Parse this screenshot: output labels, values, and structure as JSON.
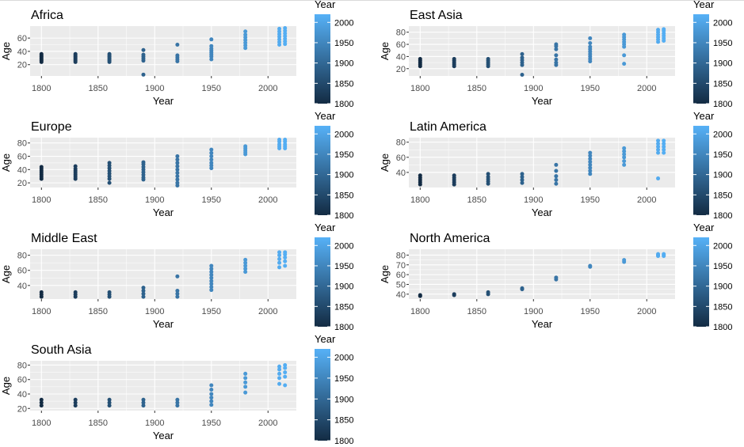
{
  "chart_data": [
    {
      "type": "scatter",
      "title": "Africa",
      "xlabel": "Year",
      "ylabel": "Age",
      "xlim": [
        1790,
        2025
      ],
      "ylim": [
        3,
        78
      ],
      "xticks": [
        1800,
        1850,
        1900,
        1950,
        2000
      ],
      "yticks": [
        20,
        40,
        60
      ],
      "legend": {
        "title": "Year",
        "ticks": [
          1800,
          1850,
          1900,
          1950,
          2000
        ],
        "range": [
          1800,
          2020
        ],
        "position": "right"
      },
      "points": [
        {
          "x": 1800,
          "y": [
            24,
            26,
            28,
            30,
            32,
            34,
            36
          ]
        },
        {
          "x": 1830,
          "y": [
            24,
            26,
            28,
            30,
            32,
            34,
            36
          ]
        },
        {
          "x": 1860,
          "y": [
            24,
            26,
            28,
            30,
            32,
            34,
            36
          ]
        },
        {
          "x": 1890,
          "y": [
            5,
            26,
            29,
            32,
            35,
            42
          ]
        },
        {
          "x": 1920,
          "y": [
            25,
            28,
            31,
            34,
            50
          ]
        },
        {
          "x": 1950,
          "y": [
            28,
            32,
            35,
            38,
            41,
            44,
            48,
            58
          ]
        },
        {
          "x": 1980,
          "y": [
            45,
            49,
            53,
            57,
            61,
            65,
            70
          ]
        },
        {
          "x": 2010,
          "y": [
            50,
            54,
            58,
            62,
            66,
            70,
            74
          ]
        },
        {
          "x": 2015,
          "y": [
            51,
            55,
            59,
            63,
            67,
            71,
            75
          ]
        }
      ]
    },
    {
      "type": "scatter",
      "title": "East Asia",
      "xlabel": "Year",
      "ylabel": "Age",
      "xlim": [
        1790,
        2025
      ],
      "ylim": [
        8,
        90
      ],
      "xticks": [
        1800,
        1850,
        1900,
        1950,
        2000
      ],
      "yticks": [
        20,
        40,
        60,
        80
      ],
      "legend": {
        "title": "Year",
        "ticks": [
          1800,
          1850,
          1900,
          1950,
          2000
        ],
        "range": [
          1800,
          2020
        ],
        "position": "right"
      },
      "points": [
        {
          "x": 1800,
          "y": [
            24,
            27,
            30,
            33,
            36
          ]
        },
        {
          "x": 1830,
          "y": [
            24,
            27,
            30,
            33,
            36
          ]
        },
        {
          "x": 1860,
          "y": [
            24,
            27,
            30,
            33,
            36
          ]
        },
        {
          "x": 1890,
          "y": [
            10,
            26,
            30,
            34,
            38,
            44
          ]
        },
        {
          "x": 1920,
          "y": [
            26,
            30,
            35,
            42,
            52,
            57,
            60
          ]
        },
        {
          "x": 1950,
          "y": [
            32,
            36,
            40,
            44,
            48,
            52,
            56,
            62,
            70
          ]
        },
        {
          "x": 1980,
          "y": [
            28,
            42,
            56,
            60,
            64,
            68,
            72,
            76
          ]
        },
        {
          "x": 2010,
          "y": [
            64,
            68,
            72,
            76,
            80,
            84
          ]
        },
        {
          "x": 2015,
          "y": [
            66,
            70,
            74,
            78,
            82,
            85
          ]
        }
      ]
    },
    {
      "type": "scatter",
      "title": "Europe",
      "xlabel": "Year",
      "ylabel": "Age",
      "xlim": [
        1790,
        2025
      ],
      "ylim": [
        13,
        88
      ],
      "xticks": [
        1800,
        1850,
        1900,
        1950,
        2000
      ],
      "yticks": [
        20,
        40,
        60,
        80
      ],
      "legend": {
        "title": "Year",
        "ticks": [
          1800,
          1850,
          1900,
          1950,
          2000
        ],
        "range": [
          1800,
          2020
        ],
        "position": "right"
      },
      "points": [
        {
          "x": 1800,
          "y": [
            26,
            29,
            32,
            35,
            38,
            41,
            44
          ]
        },
        {
          "x": 1830,
          "y": [
            26,
            29,
            32,
            35,
            38,
            41,
            45
          ]
        },
        {
          "x": 1860,
          "y": [
            20,
            26,
            30,
            34,
            38,
            42,
            46,
            50
          ]
        },
        {
          "x": 1890,
          "y": [
            25,
            28,
            32,
            36,
            40,
            44,
            48,
            51
          ]
        },
        {
          "x": 1920,
          "y": [
            16,
            20,
            25,
            30,
            35,
            40,
            45,
            50,
            55,
            60
          ]
        },
        {
          "x": 1950,
          "y": [
            42,
            46,
            50,
            55,
            60,
            65,
            70
          ]
        },
        {
          "x": 1980,
          "y": [
            63,
            66,
            69,
            72,
            75
          ]
        },
        {
          "x": 2010,
          "y": [
            72,
            75,
            78,
            82,
            85
          ]
        },
        {
          "x": 2015,
          "y": [
            72,
            75,
            78,
            82,
            85
          ]
        }
      ]
    },
    {
      "type": "scatter",
      "title": "Latin America",
      "xlabel": "Year",
      "ylabel": "Age",
      "xlim": [
        1790,
        2025
      ],
      "ylim": [
        20,
        86
      ],
      "xticks": [
        1800,
        1850,
        1900,
        1950,
        2000
      ],
      "yticks": [
        40,
        60,
        80
      ],
      "legend": {
        "title": "Year",
        "ticks": [
          1800,
          1850,
          1900,
          1950,
          2000
        ],
        "range": [
          1800,
          2020
        ],
        "position": "right"
      },
      "points": [
        {
          "x": 1800,
          "y": [
            24,
            27,
            30,
            33,
            36
          ]
        },
        {
          "x": 1830,
          "y": [
            24,
            27,
            30,
            33,
            36
          ]
        },
        {
          "x": 1860,
          "y": [
            25,
            28,
            31,
            34,
            38
          ]
        },
        {
          "x": 1890,
          "y": [
            26,
            30,
            34,
            38
          ]
        },
        {
          "x": 1920,
          "y": [
            25,
            30,
            35,
            42,
            50
          ]
        },
        {
          "x": 1950,
          "y": [
            38,
            42,
            46,
            50,
            54,
            58,
            62,
            66
          ]
        },
        {
          "x": 1980,
          "y": [
            50,
            55,
            60,
            64,
            68,
            72
          ]
        },
        {
          "x": 2010,
          "y": [
            32,
            66,
            70,
            74,
            78,
            82
          ]
        },
        {
          "x": 2015,
          "y": [
            66,
            70,
            74,
            78,
            82
          ]
        }
      ]
    },
    {
      "type": "scatter",
      "title": "Middle East",
      "xlabel": "Year",
      "ylabel": "Age",
      "xlim": [
        1790,
        2025
      ],
      "ylim": [
        22,
        88
      ],
      "xticks": [
        1800,
        1850,
        1900,
        1950,
        2000
      ],
      "yticks": [
        40,
        60,
        80
      ],
      "legend": {
        "title": "Year",
        "ticks": [
          1800,
          1850,
          1900,
          1950,
          2000
        ],
        "range": [
          1800,
          2020
        ],
        "position": "right"
      },
      "points": [
        {
          "x": 1800,
          "y": [
            25,
            28,
            31
          ]
        },
        {
          "x": 1830,
          "y": [
            25,
            28,
            31
          ]
        },
        {
          "x": 1860,
          "y": [
            25,
            28,
            31
          ]
        },
        {
          "x": 1890,
          "y": [
            25,
            29,
            33,
            37
          ]
        },
        {
          "x": 1920,
          "y": [
            25,
            29,
            33,
            52
          ]
        },
        {
          "x": 1950,
          "y": [
            34,
            38,
            42,
            46,
            50,
            54,
            58,
            62,
            66
          ]
        },
        {
          "x": 1980,
          "y": [
            58,
            62,
            66,
            70,
            74
          ]
        },
        {
          "x": 2010,
          "y": [
            64,
            70,
            75,
            80,
            84
          ]
        },
        {
          "x": 2015,
          "y": [
            66,
            72,
            77,
            81,
            84
          ]
        }
      ]
    },
    {
      "type": "scatter",
      "title": "North America",
      "xlabel": "Year",
      "ylabel": "Age",
      "xlim": [
        1790,
        2025
      ],
      "ylim": [
        35,
        86
      ],
      "xticks": [
        1800,
        1850,
        1900,
        1950,
        2000
      ],
      "yticks": [
        40,
        50,
        60,
        70,
        80
      ],
      "legend": {
        "title": "Year",
        "ticks": [
          1800,
          1850,
          1900,
          1950,
          2000
        ],
        "range": [
          1800,
          2020
        ],
        "position": "right"
      },
      "points": [
        {
          "x": 1800,
          "y": [
            38,
            39
          ]
        },
        {
          "x": 1830,
          "y": [
            39,
            40
          ]
        },
        {
          "x": 1860,
          "y": [
            40,
            42
          ]
        },
        {
          "x": 1890,
          "y": [
            45,
            46
          ]
        },
        {
          "x": 1920,
          "y": [
            55,
            57
          ]
        },
        {
          "x": 1950,
          "y": [
            68,
            69
          ]
        },
        {
          "x": 1980,
          "y": [
            73,
            75
          ]
        },
        {
          "x": 2010,
          "y": [
            79,
            80,
            81
          ]
        },
        {
          "x": 2015,
          "y": [
            79,
            80,
            81
          ]
        }
      ]
    },
    {
      "type": "scatter",
      "title": "South Asia",
      "xlabel": "Year",
      "ylabel": "Age",
      "xlim": [
        1790,
        2025
      ],
      "ylim": [
        17,
        86
      ],
      "xticks": [
        1800,
        1850,
        1900,
        1950,
        2000
      ],
      "yticks": [
        20,
        40,
        60,
        80
      ],
      "legend": {
        "title": "Year",
        "ticks": [
          1800,
          1850,
          1900,
          1950,
          2000
        ],
        "range": [
          1800,
          2020
        ],
        "position": "right"
      },
      "points": [
        {
          "x": 1800,
          "y": [
            24,
            28,
            32
          ]
        },
        {
          "x": 1830,
          "y": [
            24,
            28,
            32
          ]
        },
        {
          "x": 1860,
          "y": [
            24,
            28,
            32
          ]
        },
        {
          "x": 1890,
          "y": [
            24,
            28,
            32
          ]
        },
        {
          "x": 1920,
          "y": [
            24,
            28,
            32
          ]
        },
        {
          "x": 1950,
          "y": [
            25,
            30,
            35,
            40,
            46,
            52
          ]
        },
        {
          "x": 1980,
          "y": [
            42,
            50,
            56,
            62,
            68
          ]
        },
        {
          "x": 2010,
          "y": [
            54,
            62,
            68,
            74,
            78
          ]
        },
        {
          "x": 2015,
          "y": [
            52,
            64,
            70,
            76,
            80
          ]
        }
      ]
    }
  ],
  "colors": {
    "panel_background": "#ebebeb",
    "grid": "#ffffff",
    "low": "#132b43",
    "high": "#56b1f7",
    "text": "#000000",
    "tick_text": "#4d4d4d"
  }
}
